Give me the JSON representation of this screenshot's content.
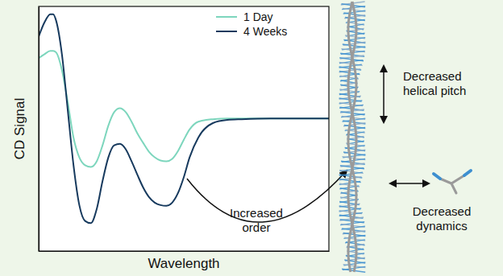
{
  "chart_data": {
    "type": "line",
    "x_label": "Wavelength",
    "y_label": "CD Signal",
    "x": [
      0,
      2,
      4,
      5,
      6,
      8,
      10,
      12,
      14,
      16,
      18,
      20,
      22,
      24,
      26,
      28,
      30,
      32,
      34,
      36,
      38,
      40,
      42,
      44,
      46,
      48,
      50,
      52,
      55,
      60,
      65,
      70,
      80,
      90,
      100
    ],
    "xlim": [
      0,
      100
    ],
    "ylim": [
      0,
      100
    ],
    "tick_labels": false,
    "legend": "top-right",
    "series": [
      {
        "name": "1 Day",
        "color": "#7dd6bd",
        "values": [
          78.9,
          80.5,
          81.8,
          81.8,
          81.2,
          74.0,
          61.0,
          46.4,
          38.3,
          35.1,
          34.4,
          36.7,
          43.2,
          51.3,
          56.8,
          58.4,
          56.8,
          52.9,
          48.1,
          44.2,
          40.6,
          38.3,
          37.0,
          36.7,
          37.7,
          40.9,
          45.5,
          49.7,
          52.9,
          53.9,
          54.2,
          54.2,
          54.2,
          54.2,
          54.2
        ]
      },
      {
        "name": "4 Weeks",
        "color": "#173a5e",
        "values": [
          87.7,
          93.5,
          96.8,
          96.8,
          94.2,
          80.5,
          57.8,
          35.1,
          18.8,
          12.3,
          11.4,
          17.2,
          28.6,
          38.3,
          43.2,
          43.8,
          41.6,
          36.7,
          31.2,
          26.0,
          22.1,
          19.8,
          18.8,
          18.5,
          19.8,
          23.7,
          30.2,
          38.3,
          46.4,
          52.3,
          53.6,
          53.9,
          54.2,
          54.2,
          54.2
        ]
      }
    ],
    "annotations": [
      "Increased order",
      "Decreased helical pitch",
      "Decreased dynamics"
    ]
  }
}
